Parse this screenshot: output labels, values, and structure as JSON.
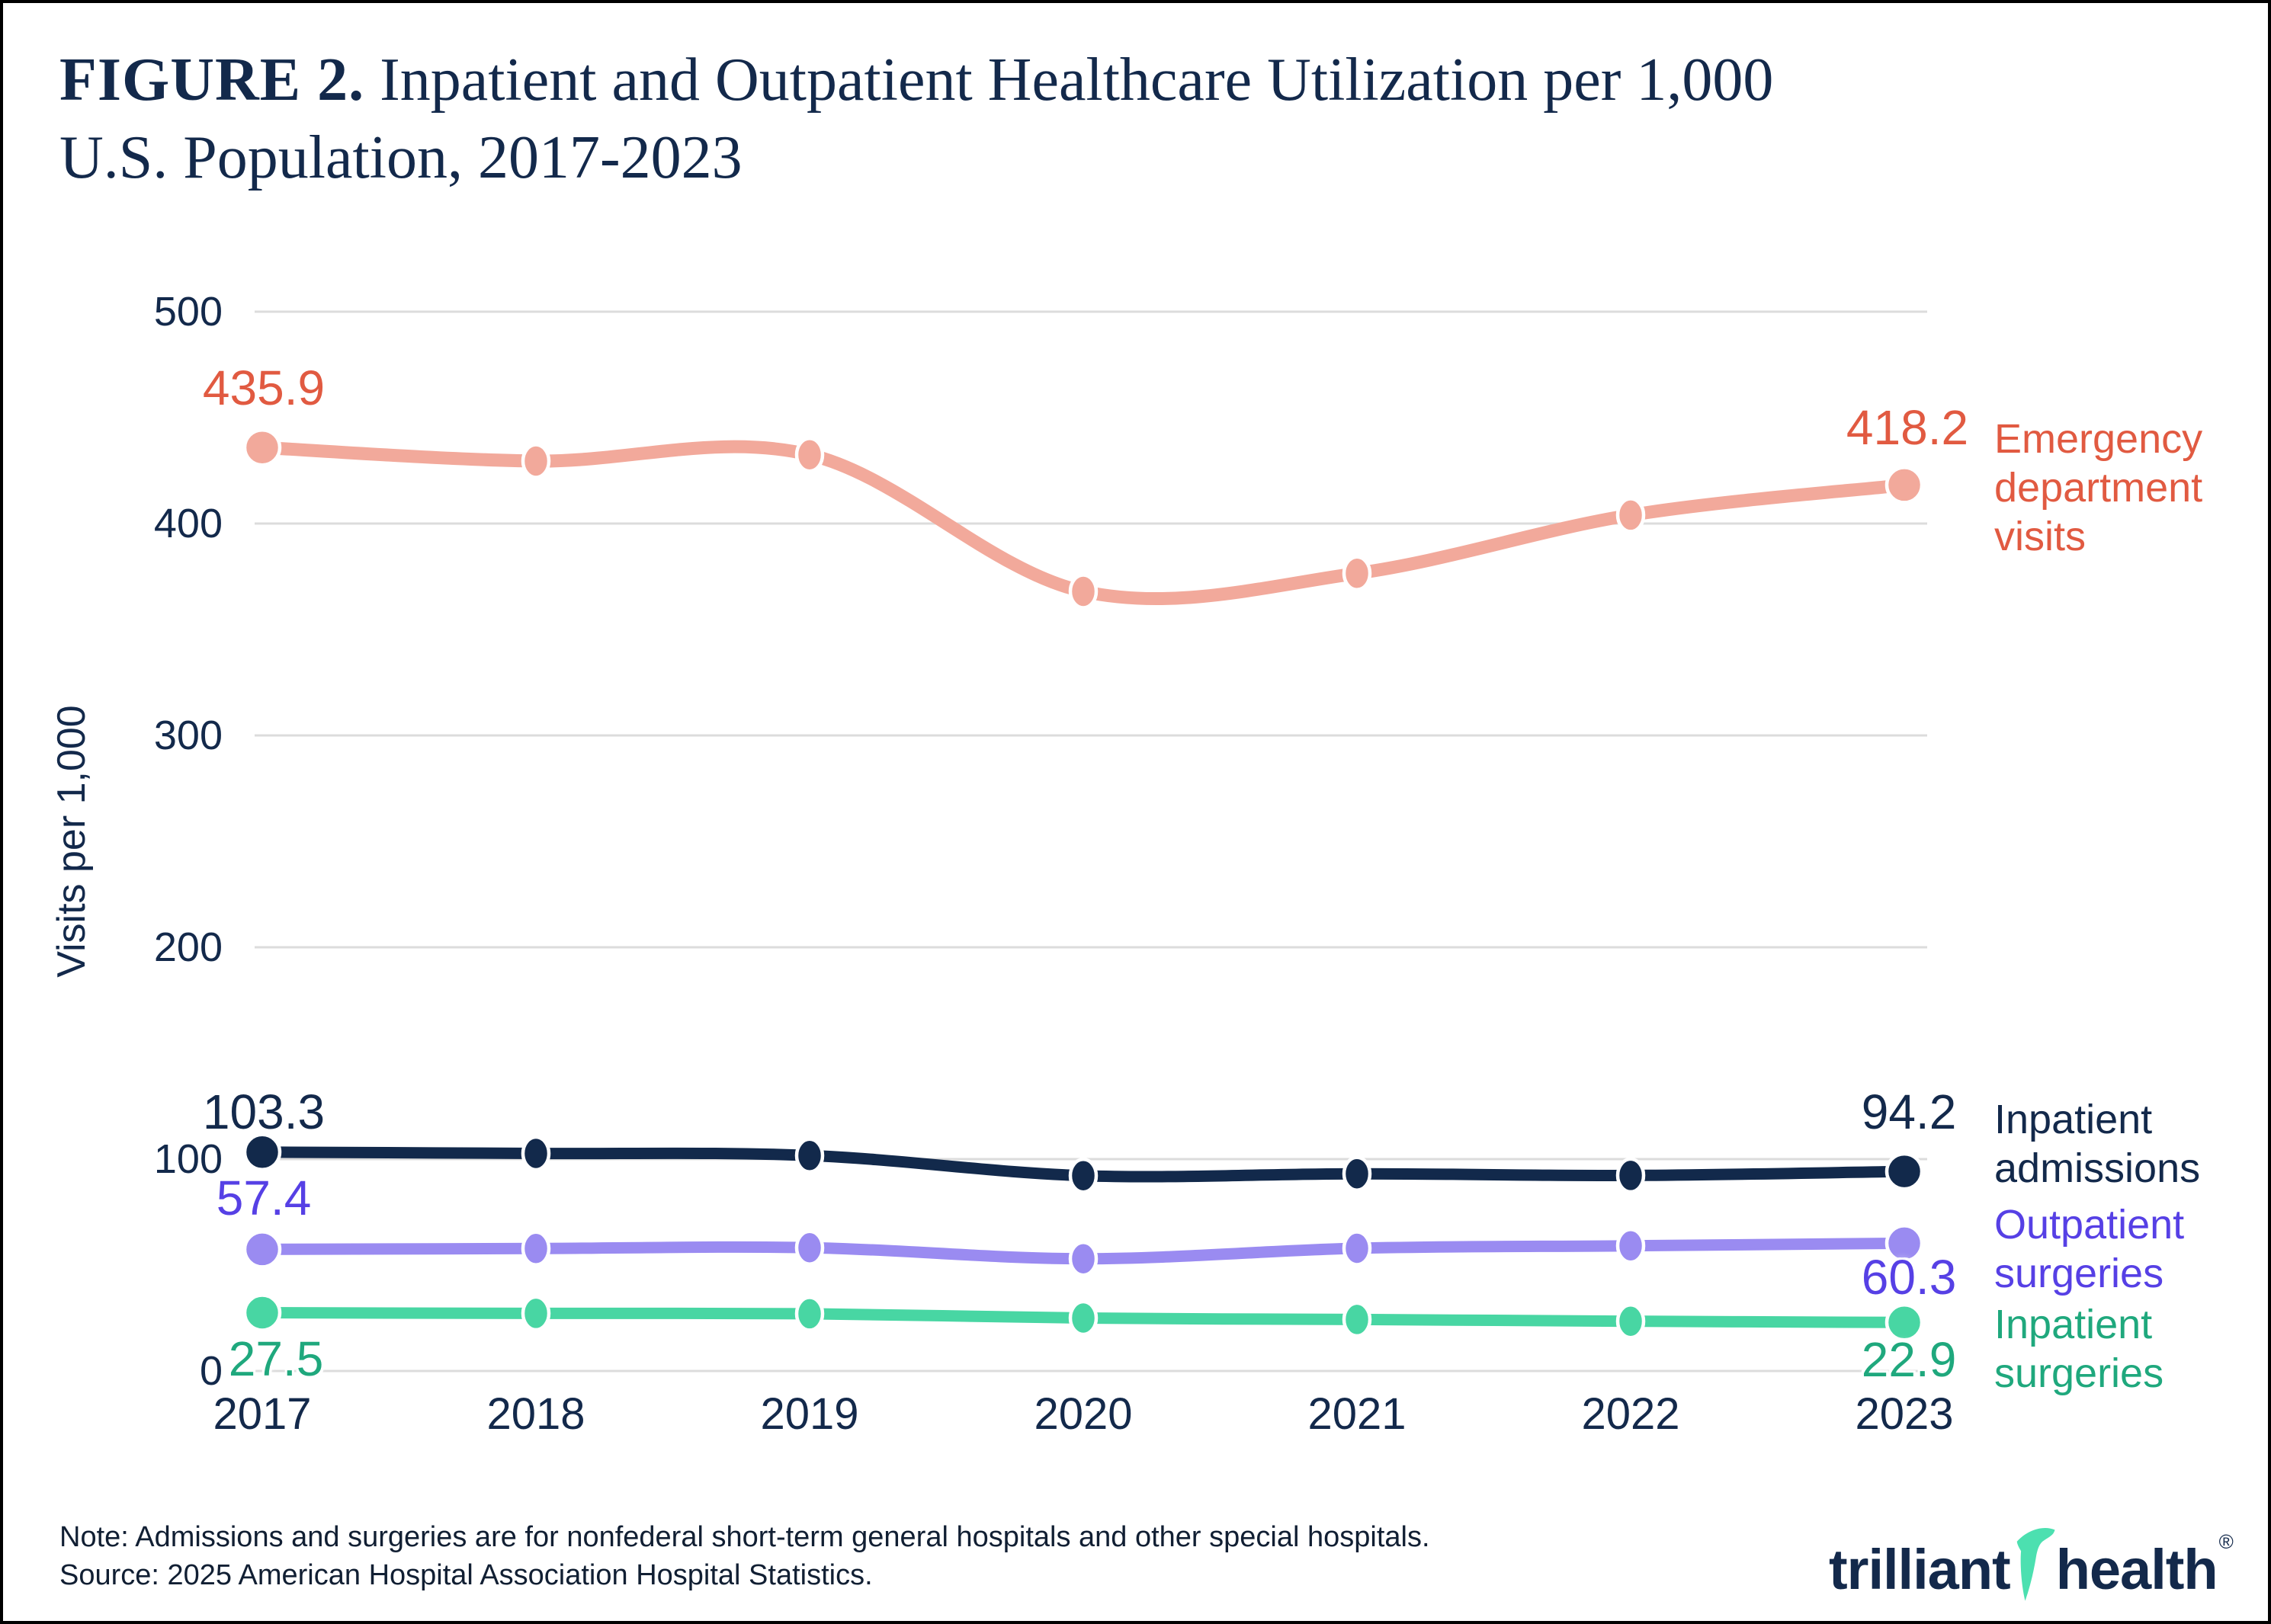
{
  "title": {
    "prefix": "FIGURE 2.",
    "line1_rest": " Inpatient and Outpatient Healthcare Utilization per 1,000",
    "line2": "U.S. Population, 2017-2023"
  },
  "colors": {
    "background": "#FFFFFF",
    "frame_border": "#000000",
    "gridline": "#DCDCDC",
    "axis_text": "#13294B"
  },
  "chart_data": {
    "type": "line",
    "x": [
      2017,
      2018,
      2019,
      2020,
      2021,
      2022,
      2023
    ],
    "x_labels": [
      "2017",
      "2018",
      "2019",
      "2020",
      "2021",
      "2022",
      "2023"
    ],
    "ylabel": "Visits per 1,000",
    "ylim": [
      0,
      500
    ],
    "grid": true,
    "legend_position": "right",
    "y_ticks": [
      {
        "label": "500",
        "value": 500
      },
      {
        "label": "400",
        "value": 400
      },
      {
        "label": "300",
        "value": 300
      },
      {
        "label": "200",
        "value": 200
      },
      {
        "label": "100",
        "value": 100
      },
      {
        "label": "0",
        "value": 0
      }
    ],
    "series": [
      {
        "name": "Emergency department visits",
        "legend_lines": [
          "Emergency",
          "department",
          "visits"
        ],
        "values": [
          435.9,
          429.5,
          432.5,
          368.0,
          376.5,
          404.0,
          418.2
        ],
        "start_label": "435.9",
        "end_label": "418.2",
        "line_color": "#F2A99B",
        "label_color": "#E15A41"
      },
      {
        "name": "Inpatient admissions",
        "legend_lines": [
          "Inpatient",
          "admissions"
        ],
        "values": [
          103.3,
          102.7,
          101.7,
          92.2,
          93.1,
          92.3,
          94.2
        ],
        "start_label": "103.3",
        "end_label": "94.2",
        "line_color": "#12294B",
        "label_color": "#13294B"
      },
      {
        "name": "Outpatient surgeries",
        "legend_lines": [
          "Outpatient",
          "surgeries"
        ],
        "values": [
          57.4,
          57.8,
          58.2,
          53.0,
          57.9,
          59.1,
          60.3
        ],
        "start_label": "57.4",
        "end_label": "60.3",
        "line_color": "#9A8BF1",
        "label_color": "#5640E5"
      },
      {
        "name": "Inpatient surgeries",
        "legend_lines": [
          "Inpatient",
          "surgeries"
        ],
        "values": [
          27.5,
          27.2,
          27.0,
          25.0,
          24.3,
          23.5,
          22.9
        ],
        "start_label": "27.5",
        "end_label": "22.9",
        "line_color": "#48D6A3",
        "label_color": "#1FA87D"
      }
    ]
  },
  "note": {
    "line1": "Note: Admissions and surgeries are for nonfederal short-term general hospitals and other special hospitals.",
    "line2": "Source: 2025 American Hospital Association Hospital Statistics."
  },
  "logo": {
    "brand_first": "trilliant",
    "brand_second": "health",
    "registered": "®",
    "swoosh_color": "#4CE0B0",
    "text_color": "#13294B"
  }
}
